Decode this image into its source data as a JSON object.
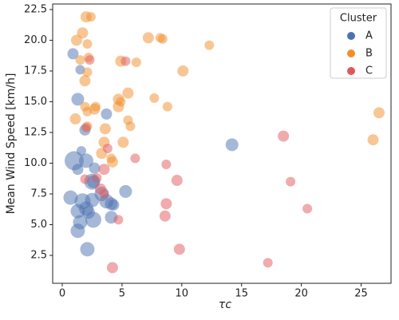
{
  "chart_data": {
    "type": "scatter",
    "x_label": "τc",
    "y_label": "Mean Wind Speed [km/h]",
    "xlim": [
      -0.8,
      27.5
    ],
    "ylim": [
      0.23,
      22.95
    ],
    "xticks": [
      0,
      5,
      10,
      15,
      20,
      25
    ],
    "yticks": [
      {
        "value": 2.5,
        "label": "2.5"
      },
      {
        "value": 5,
        "label": "5.0"
      },
      {
        "value": 7.5,
        "label": "7.5"
      },
      {
        "value": 10,
        "label": "10.0"
      },
      {
        "value": 12.5,
        "label": "12.5"
      },
      {
        "value": 15,
        "label": "15.0"
      },
      {
        "value": 17.5,
        "label": "17.5"
      },
      {
        "value": 20,
        "label": "20.0"
      },
      {
        "value": 22.5,
        "label": "22.5"
      }
    ],
    "alpha": 0.5,
    "legend_title": "Cluster",
    "legend": "upper right",
    "series": [
      {
        "name": "A",
        "color": "#4c72b0",
        "x": [
          0.9,
          1.3,
          1.5,
          1.9,
          1.6,
          1.3,
          1.0,
          2.0,
          2.7,
          3.7,
          5.3,
          14.2,
          0.7,
          1.3,
          1.7,
          2.0,
          1.5,
          1.3,
          2.1,
          2.5,
          2.5,
          2.6,
          2.2,
          3.3,
          3.7,
          4.1,
          4.3,
          4.1,
          2.6
        ],
        "values": [
          18.9,
          15.2,
          17.6,
          12.7,
          11.0,
          9.5,
          10.2,
          10.2,
          9.6,
          14.0,
          7.7,
          11.5,
          7.2,
          6.1,
          6.9,
          6.3,
          5.2,
          4.5,
          3.0,
          7.0,
          8.5,
          5.4,
          6.0,
          7.5,
          6.9,
          6.7,
          6.6,
          5.6,
          8.5
        ],
        "sizes": [
          7,
          8,
          6,
          7,
          6,
          7,
          12,
          9,
          7,
          7,
          8,
          8,
          9,
          9,
          10,
          9,
          9,
          9,
          9,
          9,
          10,
          10,
          8,
          9,
          9,
          8,
          7,
          8,
          8
        ]
      },
      {
        "name": "B",
        "color": "#f28e2b",
        "x": [
          2.0,
          2.4,
          1.7,
          1.2,
          2.1,
          1.5,
          2.2,
          2.1,
          1.9,
          1.1,
          2.1,
          2.7,
          2.8,
          1.9,
          2.1,
          3.5,
          3.6,
          3.3,
          4.1,
          4.2,
          4.7,
          4.7,
          4.9,
          5.5,
          5.5,
          5.7,
          5.1,
          4.9,
          6.2,
          7.2,
          8.2,
          8.4,
          10.1,
          12.3,
          7.7,
          8.8,
          26.0,
          26.5
        ],
        "values": [
          21.9,
          21.9,
          20.6,
          20.0,
          19.7,
          18.4,
          18.6,
          17.4,
          16.7,
          13.6,
          14.2,
          14.4,
          14.6,
          14.6,
          13.0,
          11.7,
          12.8,
          10.8,
          10.4,
          10.1,
          15.2,
          14.6,
          15.0,
          15.7,
          13.5,
          13.0,
          11.7,
          18.3,
          18.2,
          20.2,
          20.2,
          20.1,
          17.5,
          19.6,
          15.3,
          14.6,
          11.9,
          14.1
        ],
        "sizes": [
          7,
          6,
          7,
          7,
          6,
          6,
          6,
          6,
          7,
          7,
          6,
          7,
          6,
          6,
          6,
          7,
          7,
          7,
          6,
          7,
          7,
          7,
          6,
          7,
          6,
          6,
          7,
          7,
          6,
          7,
          6,
          6,
          7,
          6,
          6,
          6,
          7,
          7
        ]
      },
      {
        "name": "C",
        "color": "#e15759",
        "x": [
          2.3,
          5.3,
          2.0,
          3.8,
          6.1,
          1.9,
          2.9,
          3.2,
          3.5,
          3.5,
          8.7,
          9.6,
          8.7,
          8.6,
          9.8,
          4.7,
          4.2,
          18.5,
          19.1,
          20.5,
          17.2
        ],
        "values": [
          18.4,
          18.3,
          12.9,
          11.2,
          10.4,
          8.7,
          8.8,
          7.9,
          9.5,
          7.5,
          9.9,
          8.6,
          6.7,
          5.7,
          3.0,
          5.4,
          1.5,
          12.2,
          8.5,
          6.3,
          1.9
        ],
        "sizes": [
          6,
          6,
          6,
          6,
          6,
          6,
          6,
          7,
          7,
          6,
          6,
          7,
          7,
          7,
          7,
          6,
          7,
          7,
          6,
          6,
          6
        ]
      }
    ]
  }
}
